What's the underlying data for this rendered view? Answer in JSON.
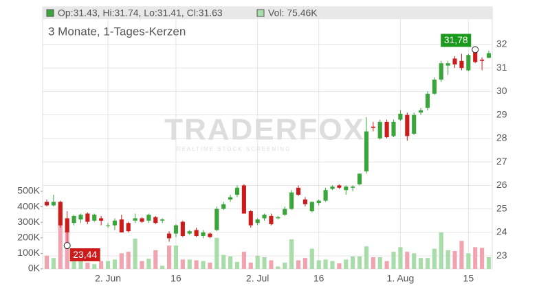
{
  "chart_data": {
    "type": "candlestick",
    "ohlc_label": "Op:31.43, Hi:31.74, Lo:31.41, Cl:31.63",
    "volume_label": "Vol: 75.46K",
    "subtitle": "3 Monate, 1-Tages-Kerzen",
    "watermark": "TRADERFOX",
    "watermark_sub": "REALTIME STOCK SCREENING",
    "categories": [
      null,
      null,
      null,
      null,
      null,
      null,
      null,
      null,
      null,
      "2. Jun",
      null,
      null,
      null,
      null,
      null,
      null,
      null,
      null,
      null,
      "16",
      null,
      null,
      null,
      null,
      null,
      null,
      null,
      null,
      null,
      null,
      null,
      "2. Jul",
      null,
      null,
      null,
      null,
      null,
      null,
      null,
      null,
      "16",
      null,
      null,
      null,
      null,
      null,
      null,
      null,
      null,
      null,
      null,
      null,
      "1. Aug",
      null,
      null,
      null,
      null,
      null,
      null,
      null,
      null,
      null,
      "15",
      null,
      null,
      null
    ],
    "open": [
      25.3,
      25.15,
      25.3,
      24.6,
      24.4,
      24.55,
      24.8,
      24.5,
      24.6,
      24.3,
      24.3,
      24.55,
      24.4,
      24.5,
      24.6,
      24.5,
      24.65,
      24.5,
      23.95,
      23.95,
      24.45,
      23.95,
      24.1,
      23.85,
      23.95,
      24.1,
      25.0,
      25.4,
      25.6,
      26.0,
      24.9,
      24.4,
      24.6,
      24.7,
      24.6,
      24.75,
      25.0,
      25.9,
      25.4,
      24.9,
      25.25,
      25.35,
      25.85,
      26.0,
      25.8,
      25.9,
      26.05,
      26.6,
      28.5,
      28.0,
      28.7,
      28.1,
      28.8,
      29.0,
      28.2,
      29.1,
      29.3,
      29.9,
      30.5,
      31.1,
      31.4,
      31.3,
      30.9,
      31.7,
      31.35,
      31.43
    ],
    "high": [
      25.4,
      25.6,
      25.35,
      24.9,
      24.75,
      24.8,
      24.85,
      24.8,
      24.7,
      24.4,
      24.6,
      24.75,
      24.45,
      24.8,
      24.65,
      24.8,
      24.7,
      24.6,
      24.05,
      24.35,
      24.5,
      24.1,
      24.2,
      24.1,
      24.0,
      25.1,
      25.3,
      25.6,
      26.0,
      26.05,
      24.95,
      24.6,
      24.8,
      24.8,
      24.7,
      25.1,
      25.8,
      26.0,
      25.5,
      25.3,
      25.4,
      25.9,
      26.0,
      26.05,
      26.0,
      26.0,
      26.5,
      28.9,
      28.7,
      28.8,
      28.8,
      28.8,
      29.2,
      29.1,
      29.1,
      29.3,
      30.0,
      30.6,
      31.3,
      31.3,
      31.5,
      31.6,
      31.6,
      31.78,
      31.45,
      31.74
    ],
    "low": [
      25.1,
      25.1,
      24.2,
      23.44,
      24.3,
      24.4,
      24.35,
      24.45,
      24.3,
      24.2,
      24.1,
      24.0,
      24.0,
      24.4,
      24.4,
      24.4,
      24.35,
      24.4,
      23.6,
      23.8,
      23.8,
      23.9,
      23.8,
      23.75,
      23.75,
      24.05,
      24.95,
      25.3,
      25.5,
      24.8,
      24.2,
      24.3,
      24.5,
      24.3,
      24.55,
      24.7,
      24.95,
      25.55,
      25.1,
      24.85,
      25.15,
      25.3,
      25.8,
      25.85,
      25.6,
      25.75,
      26.0,
      26.5,
      28.3,
      27.95,
      28.0,
      28.05,
      28.75,
      27.9,
      28.15,
      29.0,
      29.2,
      29.85,
      30.4,
      30.7,
      31.0,
      30.9,
      30.85,
      31.2,
      30.9,
      31.41
    ],
    "close": [
      25.15,
      25.3,
      24.3,
      24.0,
      24.7,
      24.75,
      24.45,
      24.75,
      24.5,
      24.3,
      24.5,
      24.0,
      24.05,
      24.6,
      24.45,
      24.75,
      24.4,
      24.55,
      23.75,
      24.3,
      23.85,
      24.05,
      23.85,
      24.0,
      23.8,
      25.0,
      25.2,
      25.5,
      25.9,
      24.8,
      24.3,
      24.55,
      24.75,
      24.35,
      24.65,
      25.0,
      25.7,
      25.6,
      25.2,
      25.3,
      25.35,
      25.8,
      25.95,
      25.9,
      25.95,
      25.95,
      26.5,
      28.3,
      28.45,
      28.7,
      28.05,
      28.7,
      29.05,
      28.1,
      29.0,
      29.2,
      29.9,
      30.5,
      31.2,
      31.2,
      31.15,
      31.0,
      31.55,
      31.25,
      31.3,
      31.63
    ],
    "volume": [
      85,
      70,
      410,
      270,
      90,
      50,
      40,
      30,
      50,
      50,
      60,
      100,
      110,
      195,
      50,
      65,
      120,
      20,
      150,
      150,
      60,
      60,
      55,
      50,
      40,
      200,
      90,
      80,
      45,
      110,
      40,
      85,
      75,
      55,
      15,
      40,
      190,
      55,
      70,
      130,
      55,
      60,
      50,
      35,
      60,
      80,
      80,
      145,
      75,
      75,
      50,
      110,
      140,
      110,
      100,
      70,
      70,
      130,
      235,
      120,
      115,
      180,
      100,
      140,
      135,
      75.46
    ],
    "up_color": "#3aa53a",
    "down_color": "#cc1b1b",
    "vol_up_color": "#a8dca8",
    "vol_down_color": "#f2a3b0",
    "ylim": [
      22.45,
      33.6
    ],
    "yticks": [
      23,
      24,
      25,
      26,
      27,
      28,
      29,
      30,
      31,
      32
    ],
    "y2lim": [
      0,
      1690
    ],
    "y2ticks": [
      {
        "value": 0,
        "label": "0K"
      },
      {
        "value": 100,
        "label": "100K"
      },
      {
        "value": 200,
        "label": "200K"
      },
      {
        "value": 300,
        "label": "300K"
      },
      {
        "value": 400,
        "label": "400K"
      },
      {
        "value": 500,
        "label": "500K"
      }
    ],
    "annotations": [
      {
        "text": "31,78",
        "value": 31.78,
        "color": "#1a9a1a"
      },
      {
        "text": "23,44",
        "value": 23.44,
        "color": "#cc1b1b"
      }
    ],
    "grid": true
  }
}
